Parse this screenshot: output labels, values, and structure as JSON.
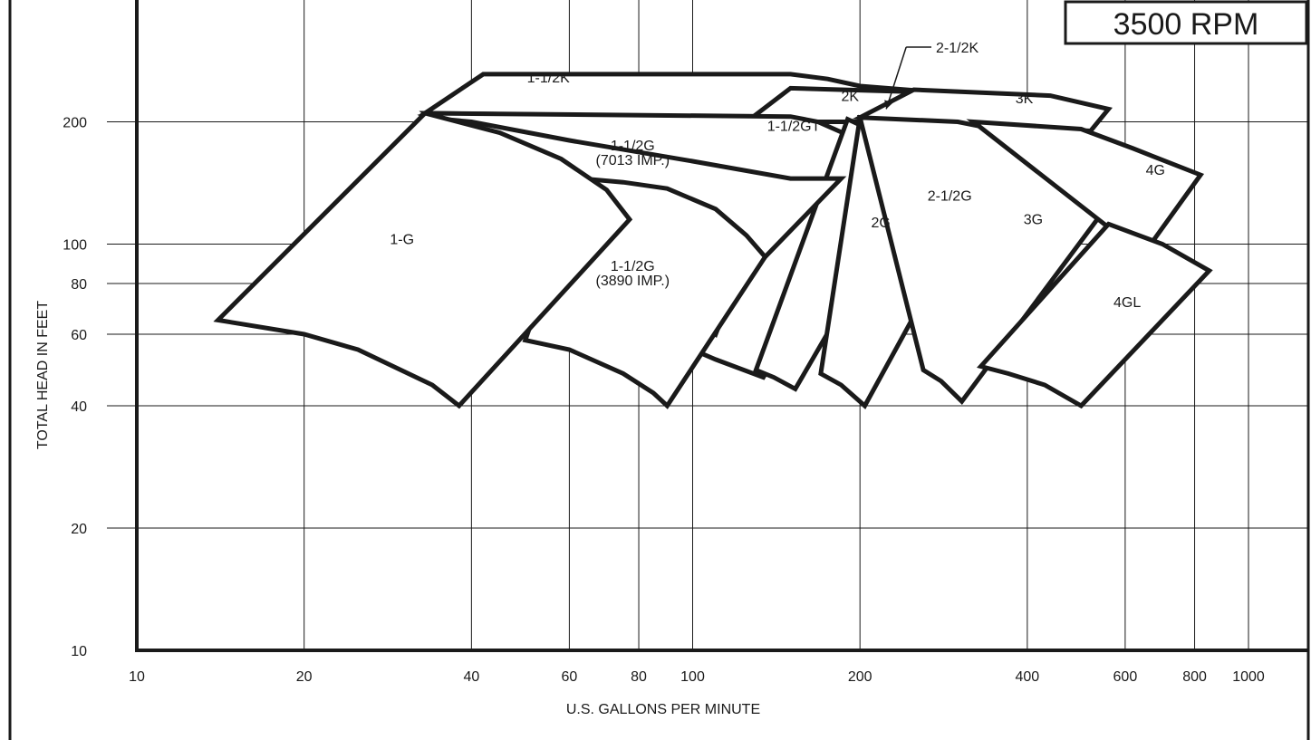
{
  "chart_data": {
    "type": "area",
    "title": "3500 RPM",
    "xlabel": "U.S. GALLONS PER MINUTE",
    "ylabel": "TOTAL HEAD IN FEET",
    "x_scale": "log",
    "y_scale": "log",
    "xlim": [
      10,
      1000
    ],
    "ylim": [
      10,
      300
    ],
    "grid": true,
    "x_ticks": [
      {
        "value": 10,
        "label": "10"
      },
      {
        "value": 20,
        "label": "20"
      },
      {
        "value": 40,
        "label": "40"
      },
      {
        "value": 60,
        "label": "60"
      },
      {
        "value": 80,
        "label": "80"
      },
      {
        "value": 100,
        "label": "100"
      },
      {
        "value": 200,
        "label": "200"
      },
      {
        "value": 400,
        "label": "400"
      },
      {
        "value": 600,
        "label": "600"
      },
      {
        "value": 800,
        "label": "800"
      },
      {
        "value": 1000,
        "label": "1000"
      }
    ],
    "y_ticks": [
      {
        "value": 10,
        "label": "10"
      },
      {
        "value": 20,
        "label": "20"
      },
      {
        "value": 40,
        "label": "40"
      },
      {
        "value": 60,
        "label": "60"
      },
      {
        "value": 80,
        "label": "80"
      },
      {
        "value": 100,
        "label": "100"
      },
      {
        "value": 200,
        "label": "200"
      }
    ],
    "series": [
      {
        "label": [
          "1-1/2K"
        ],
        "label_at": [
          55,
          250
        ],
        "points": [
          [
            33,
            210
          ],
          [
            42,
            262
          ],
          [
            150,
            262
          ],
          [
            175,
            255
          ],
          [
            200,
            245
          ],
          [
            260,
            238
          ],
          [
            310,
            220
          ],
          [
            340,
            200
          ],
          [
            310,
            192
          ],
          [
            150,
            205
          ],
          [
            33,
            210
          ]
        ]
      },
      {
        "label": [
          "2K"
        ],
        "label_at": [
          192,
          225
        ],
        "points": [
          [
            125,
            200
          ],
          [
            150,
            242
          ],
          [
            310,
            235
          ],
          [
            360,
            225
          ],
          [
            360,
            200
          ],
          [
            125,
            200
          ]
        ]
      },
      {
        "label": [
          "3K"
        ],
        "label_at": [
          395,
          222
        ],
        "points": [
          [
            200,
            205
          ],
          [
            250,
            240
          ],
          [
            440,
            232
          ],
          [
            560,
            215
          ],
          [
            520,
            190
          ],
          [
            260,
            198
          ],
          [
            200,
            205
          ]
        ]
      },
      {
        "label": [
          "1-1/2GT"
        ],
        "label_at": [
          152,
          190
        ],
        "points": [
          [
            33,
            210
          ],
          [
            150,
            206
          ],
          [
            168,
            200
          ],
          [
            200,
            180
          ],
          [
            215,
            160
          ],
          [
            220,
            143
          ],
          [
            134,
            47
          ],
          [
            110,
            52
          ],
          [
            100,
            55
          ],
          [
            33,
            210
          ]
        ]
      },
      {
        "label": [
          "2G"
        ],
        "label_at": [
          218,
          110
        ],
        "points": [
          [
            190,
            203
          ],
          [
            220,
            185
          ],
          [
            238,
            160
          ],
          [
            252,
            143
          ],
          [
            153,
            44
          ],
          [
            140,
            47
          ],
          [
            130,
            49
          ],
          [
            190,
            203
          ]
        ]
      },
      {
        "label": [
          "2-1/2G"
        ],
        "label_at": [
          290,
          128
        ],
        "points": [
          [
            200,
            205
          ],
          [
            250,
            193
          ],
          [
            290,
            170
          ],
          [
            320,
            153
          ],
          [
            335,
            138
          ],
          [
            204,
            40
          ],
          [
            185,
            45
          ],
          [
            170,
            48
          ],
          [
            200,
            205
          ]
        ]
      },
      {
        "label": [
          "3G"
        ],
        "label_at": [
          410,
          112
        ],
        "points": [
          [
            200,
            205
          ],
          [
            300,
            200
          ],
          [
            400,
            185
          ],
          [
            520,
            167
          ],
          [
            590,
            138
          ],
          [
            305,
            41
          ],
          [
            280,
            46
          ],
          [
            260,
            49
          ],
          [
            200,
            205
          ]
        ]
      },
      {
        "label": [
          "4G"
        ],
        "label_at": [
          680,
          148
        ],
        "points": [
          [
            320,
            200
          ],
          [
            500,
            192
          ],
          [
            620,
            172
          ],
          [
            820,
            148
          ],
          [
            660,
            98
          ],
          [
            590,
            104
          ],
          [
            320,
            200
          ]
        ]
      },
      {
        "label": [
          "1-1/2G",
          "(7013 IMP.)"
        ],
        "label_at": [
          78,
          170
        ],
        "points": [
          [
            33,
            205
          ],
          [
            40,
            200
          ],
          [
            60,
            180
          ],
          [
            100,
            160
          ],
          [
            150,
            145
          ],
          [
            185,
            145
          ],
          [
            135,
            93
          ],
          [
            115,
            70
          ],
          [
            110,
            60
          ],
          [
            33,
            205
          ]
        ]
      },
      {
        "label": [
          "1-1/2G",
          "(3890 IMP.)"
        ],
        "label_at": [
          78,
          86
        ],
        "points": [
          [
            63,
            145
          ],
          [
            75,
            142
          ],
          [
            90,
            137
          ],
          [
            110,
            122
          ],
          [
            125,
            105
          ],
          [
            135,
            93
          ],
          [
            90,
            40
          ],
          [
            85,
            43
          ],
          [
            75,
            48
          ],
          [
            60,
            55
          ],
          [
            50,
            58
          ],
          [
            63,
            145
          ]
        ]
      },
      {
        "label": [
          "1-G"
        ],
        "label_at": [
          30,
          100
        ],
        "points": [
          [
            33,
            210
          ],
          [
            45,
            188
          ],
          [
            58,
            162
          ],
          [
            70,
            136
          ],
          [
            77,
            115
          ],
          [
            38,
            40
          ],
          [
            34,
            45
          ],
          [
            25,
            55
          ],
          [
            20,
            60
          ],
          [
            14,
            65
          ],
          [
            33,
            210
          ]
        ]
      },
      {
        "label": [
          "4GL"
        ],
        "label_at": [
          605,
          70
        ],
        "points": [
          [
            560,
            112
          ],
          [
            700,
            100
          ],
          [
            850,
            86
          ],
          [
            500,
            40
          ],
          [
            430,
            45
          ],
          [
            370,
            48
          ],
          [
            330,
            50
          ],
          [
            560,
            112
          ]
        ]
      }
    ],
    "annotations": [
      {
        "text": "2-1/2K",
        "arrow_to": [
          223,
          215
        ]
      }
    ]
  }
}
